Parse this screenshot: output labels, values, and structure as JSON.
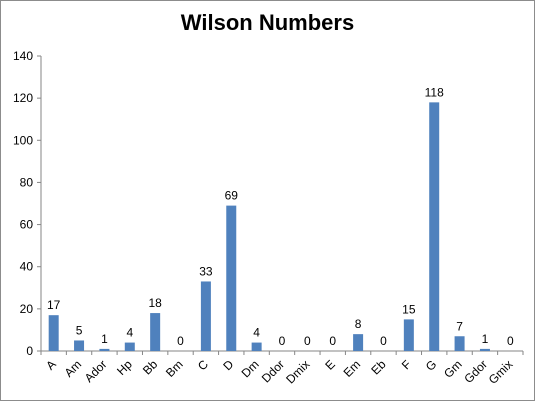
{
  "chart_data": {
    "type": "bar",
    "title": "Wilson Numbers",
    "xlabel": "",
    "ylabel": "",
    "ylim": [
      0,
      140
    ],
    "yticks": [
      0,
      20,
      40,
      60,
      80,
      100,
      120,
      140
    ],
    "grid": false,
    "legend": "none",
    "bar_color": "#4F81BD",
    "categories": [
      "A",
      "Am",
      "Ador",
      "Hp",
      "Bb",
      "Bm",
      "C",
      "D",
      "Dm",
      "Ddor",
      "Dmix",
      "E",
      "Em",
      "Eb",
      "F",
      "G",
      "Gm",
      "Gdor",
      "Gmix"
    ],
    "values": [
      17,
      5,
      1,
      4,
      18,
      0,
      33,
      69,
      4,
      0,
      0,
      0,
      8,
      0,
      15,
      118,
      7,
      1,
      0
    ]
  }
}
